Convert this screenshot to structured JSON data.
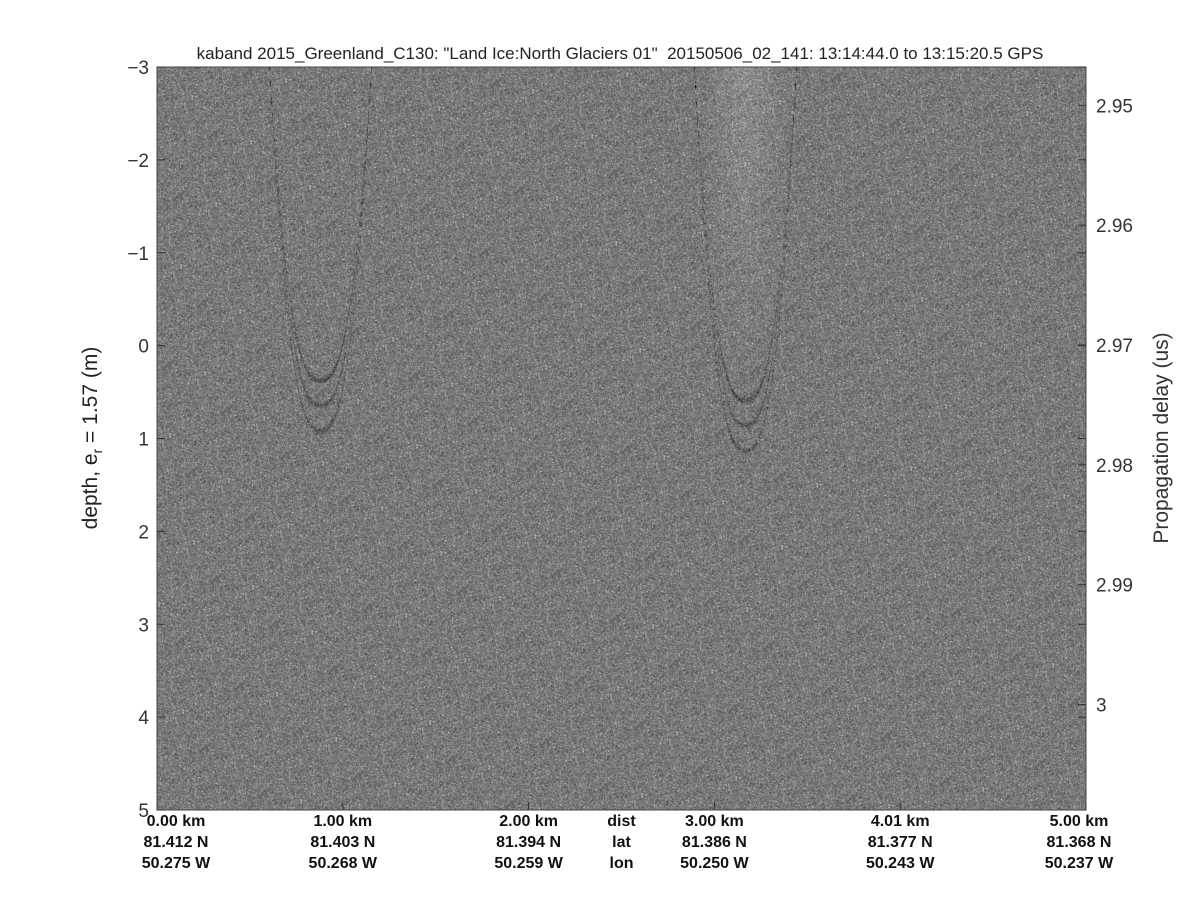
{
  "chart_data": {
    "type": "heatmap",
    "title": "kaband 2015_Greenland_C130: \"Land Ice:North Glaciers 01\"  20150506_02_141: 13:14:44.0 to 13:15:20.5 GPS",
    "ylabel_left": "depth, e",
    "ylabel_left_sub": "r",
    "ylabel_left_rest": " = 1.57 (m)",
    "ylabel_right": "Propagation delay (us)",
    "ylim_left": [
      -3,
      5
    ],
    "y_left_ticks": [
      "-3",
      "-2",
      "-1",
      "0",
      "1",
      "2",
      "3",
      "4",
      "5"
    ],
    "y_left_tick_values": [
      -3,
      -2,
      -1,
      0,
      1,
      2,
      3,
      4,
      5
    ],
    "y_right_ticks": [
      "2.95",
      "2.96",
      "2.97",
      "2.98",
      "2.99",
      "3"
    ],
    "y_right_tick_values": [
      2.95,
      2.96,
      2.97,
      2.98,
      2.99,
      3.0
    ],
    "ylim_right": [
      2.9468,
      3.0088
    ],
    "colormap": "gray",
    "x_rows": {
      "dist": [
        "0.00 km",
        "1.00 km",
        "2.00 km",
        "3.00 km",
        "4.01 km",
        "5.00 km"
      ],
      "lat": [
        "81.412 N",
        "81.403 N",
        "81.394 N",
        "81.386 N",
        "81.377 N",
        "81.368 N"
      ],
      "lon": [
        "50.275 W",
        "50.268 W",
        "50.259 W",
        "50.250 W",
        "50.243 W",
        "50.237 W"
      ]
    },
    "x_row_labels": {
      "dist": "dist",
      "lat": "lat",
      "lon": "lon"
    },
    "x_tick_fractions": [
      0,
      0.2,
      0.4,
      0.6,
      0.8,
      1.0
    ],
    "row_label_fraction": 0.5
  }
}
